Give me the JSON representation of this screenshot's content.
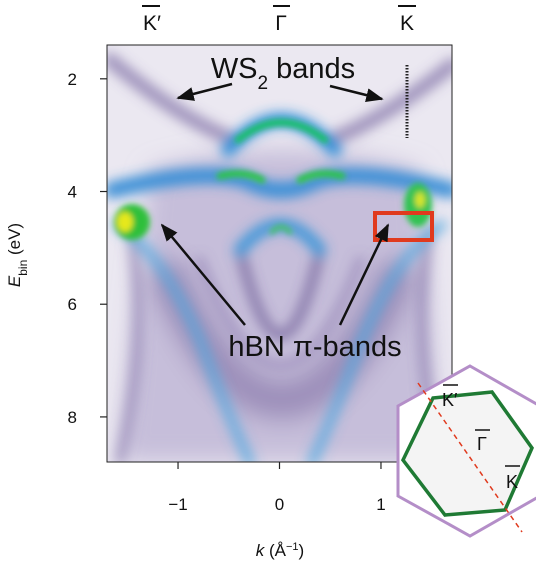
{
  "chart_data": {
    "type": "image",
    "top_labels": [
      "K′",
      "Γ",
      "K"
    ],
    "x_label": [
      "k",
      " (Å",
      "−1",
      ")"
    ],
    "y_label": [
      "E",
      "bin",
      " (eV)"
    ],
    "annotations": {
      "ws2": [
        "WS",
        "2",
        " bands"
      ],
      "hbn": "hBN π-bands"
    },
    "inset_labels": [
      "K′",
      "Γ",
      "K"
    ],
    "xlim": [
      -1.7,
      1.7
    ],
    "ylim": [
      1.4,
      8.8
    ],
    "y_inverted": true,
    "xticks": [
      {
        "value": -1,
        "label": "−1"
      },
      0,
      1
    ],
    "yticks": [
      2,
      4,
      6,
      8
    ]
  }
}
